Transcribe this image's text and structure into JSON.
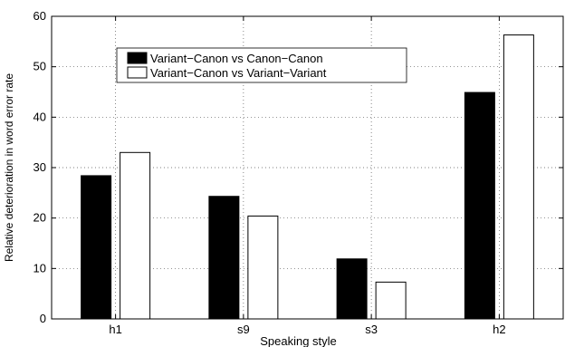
{
  "chart_data": {
    "type": "bar",
    "title": "",
    "xlabel": "Speaking style",
    "ylabel": "Relative deterioration in word error rate",
    "categories": [
      "h1",
      "s9",
      "s3",
      "h2"
    ],
    "series": [
      {
        "name": "Variant−Canon vs Canon−Canon",
        "color": "#000000",
        "values": [
          28.4,
          24.3,
          11.9,
          44.9
        ]
      },
      {
        "name": "Variant−Canon vs Variant−Variant",
        "color": "#ffffff",
        "values": [
          33.0,
          20.4,
          7.3,
          56.3
        ]
      }
    ],
    "ylim": [
      0,
      60
    ],
    "yticks": [
      0,
      10,
      20,
      30,
      40,
      50,
      60
    ],
    "grid": true,
    "legend_position": "top-left"
  }
}
